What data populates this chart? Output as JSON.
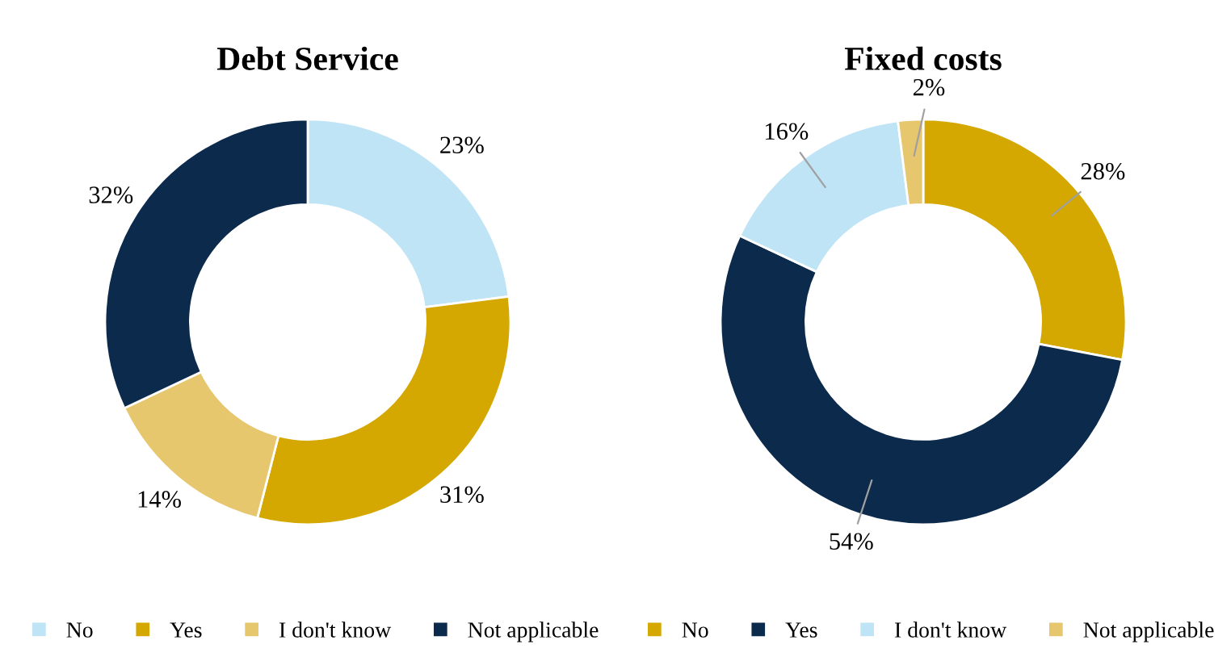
{
  "chart_data": [
    {
      "type": "donut",
      "title": "Debt Service",
      "categories": [
        "No",
        "Yes",
        "I don't know",
        "Not applicable"
      ],
      "values": [
        23,
        31,
        14,
        32
      ],
      "colors": [
        "#bfe4f6",
        "#d4a800",
        "#e6c76e",
        "#0b2a4c"
      ],
      "value_labels": [
        "23%",
        "31%",
        "14%",
        "32%"
      ],
      "legend": "bottom"
    },
    {
      "type": "donut",
      "title": "Fixed costs",
      "categories": [
        "No",
        "Yes",
        "I don't know",
        "Not applicable"
      ],
      "values": [
        28,
        54,
        16,
        2
      ],
      "colors": [
        "#d4a800",
        "#0b2a4c",
        "#bfe4f6",
        "#e6c76e"
      ],
      "value_labels": [
        "28%",
        "54%",
        "16%",
        "2%"
      ],
      "legend": "bottom"
    }
  ]
}
